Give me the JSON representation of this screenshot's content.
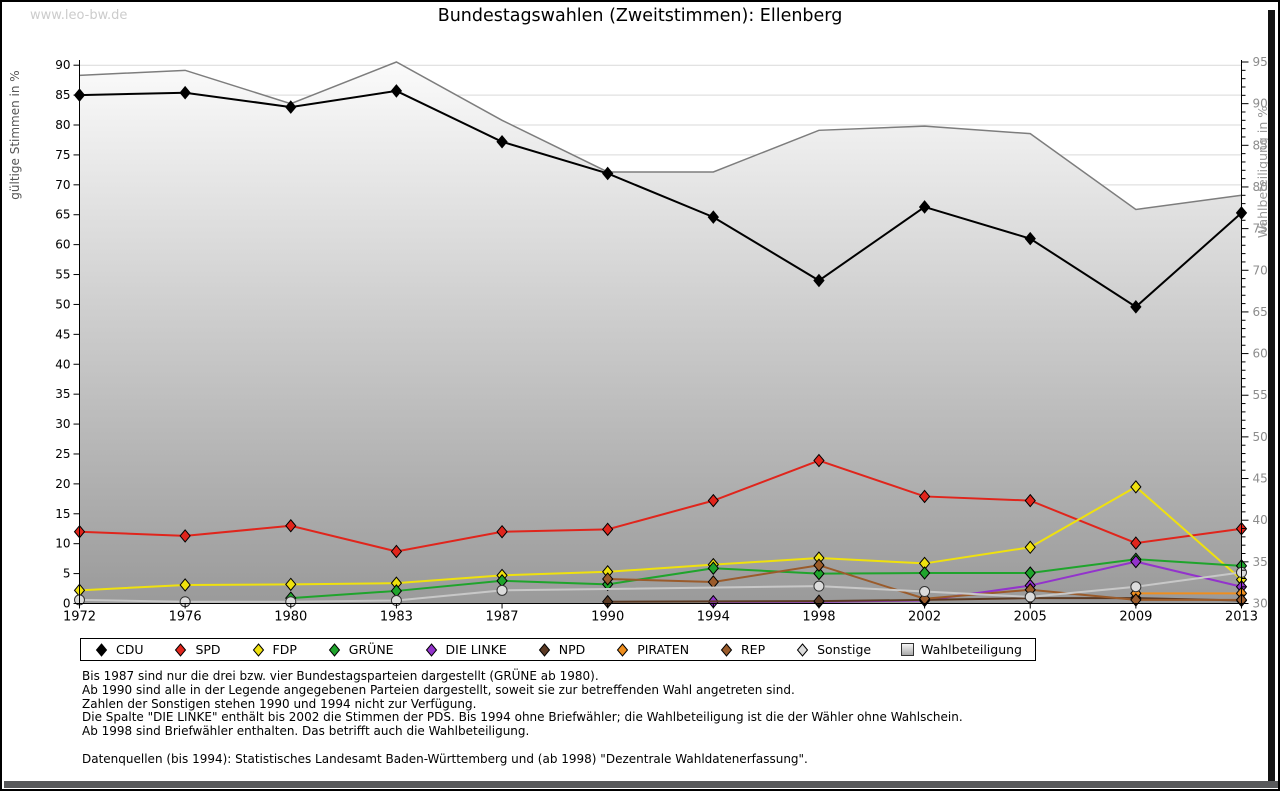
{
  "watermark": "www.leo-bw.de",
  "title": "Bundestagswahlen (Zweitstimmen): Ellenberg",
  "chart_data": {
    "type": "line",
    "categories": [
      1972,
      1976,
      1980,
      1983,
      1987,
      1990,
      1994,
      1998,
      2002,
      2005,
      2009,
      2013
    ],
    "left_axis": {
      "label": "gültige Stimmen in %",
      "min": 0,
      "max": 90,
      "step": 5,
      "ticks": [
        0,
        5,
        10,
        15,
        20,
        25,
        30,
        35,
        40,
        45,
        50,
        55,
        60,
        65,
        70,
        75,
        80,
        85,
        90
      ]
    },
    "right_axis": {
      "label": "Wahlbeteiligung in %",
      "min": 30,
      "max": 95,
      "step": 5,
      "ticks": [
        30,
        35,
        40,
        45,
        50,
        55,
        60,
        65,
        70,
        75,
        80,
        85,
        90,
        95
      ]
    },
    "grid": "horizontal",
    "legend_position": "bottom",
    "series": [
      {
        "name": "CDU",
        "color": "#000000",
        "marker": "diamond",
        "axis": "left",
        "values": [
          85,
          85.4,
          83,
          85.7,
          77.2,
          71.9,
          64.6,
          54,
          66.3,
          61,
          49.6,
          65.3
        ]
      },
      {
        "name": "SPD",
        "color": "#e0251c",
        "marker": "diamond",
        "axis": "left",
        "values": [
          12,
          11.3,
          13,
          8.7,
          12,
          12.4,
          17.2,
          23.9,
          17.9,
          17.2,
          10.1,
          12.5
        ]
      },
      {
        "name": "FDP",
        "color": "#efe10e",
        "marker": "diamond",
        "axis": "left",
        "values": [
          2.2,
          3.1,
          3.2,
          3.4,
          4.7,
          5.3,
          6.5,
          7.6,
          6.7,
          9.4,
          19.5,
          4.0
        ]
      },
      {
        "name": "GRÜNE",
        "color": "#1fa42c",
        "marker": "diamond",
        "axis": "left",
        "values": [
          null,
          null,
          0.9,
          2.1,
          3.8,
          3.2,
          5.9,
          5.0,
          5.1,
          5.1,
          7.4,
          6.3
        ]
      },
      {
        "name": "DIE LINKE",
        "color": "#9333cc",
        "marker": "diamond",
        "axis": "left",
        "values": [
          null,
          null,
          null,
          null,
          null,
          null,
          0.3,
          0.3,
          0.5,
          3.0,
          7.0,
          2.8
        ]
      },
      {
        "name": "NPD",
        "color": "#5b3a24",
        "marker": "diamond",
        "axis": "left",
        "values": [
          null,
          null,
          null,
          null,
          null,
          0.3,
          null,
          0.4,
          0.6,
          0.9,
          0.9,
          0.5
        ]
      },
      {
        "name": "PIRATEN",
        "color": "#ef8e1e",
        "marker": "diamond",
        "axis": "left",
        "values": [
          null,
          null,
          null,
          null,
          null,
          null,
          null,
          null,
          null,
          null,
          1.7,
          1.7
        ]
      },
      {
        "name": "REP",
        "color": "#9a5b2b",
        "marker": "diamond",
        "axis": "left",
        "values": [
          null,
          null,
          null,
          null,
          null,
          4.1,
          3.6,
          6.4,
          0.8,
          2.3,
          0.6,
          0.6
        ]
      },
      {
        "name": "Sonstige",
        "color": "#c8c8c8",
        "marker": "circle",
        "axis": "left",
        "values": [
          0.6,
          0.3,
          0.3,
          0.5,
          2.2,
          null,
          null,
          2.9,
          2.0,
          1.1,
          2.8,
          5.2
        ]
      },
      {
        "name": "Wahlbeteiligung",
        "color": "#7d7d7d",
        "marker": "area",
        "axis": "right",
        "values": [
          93.4,
          94.0,
          90.0,
          95.0,
          88.0,
          81.8,
          81.8,
          86.8,
          87.3,
          86.4,
          77.3,
          79.0
        ]
      }
    ]
  },
  "footnotes": [
    "Bis 1987 sind nur die drei bzw. vier Bundestagsparteien dargestellt (GRÜNE ab 1980).",
    "Ab 1990 sind alle in der Legende angegebenen Parteien dargestellt, soweit sie zur betreffenden Wahl angetreten sind.",
    "Zahlen der Sonstigen stehen 1990 und 1994 nicht zur Verfügung.",
    "Die Spalte \"DIE LINKE\" enthält bis 2002 die Stimmen der PDS. Bis 1994 ohne Briefwähler; die Wahlbeteiligung ist die der Wähler ohne Wahlschein.",
    "Ab 1998 sind Briefwähler enthalten. Das betrifft auch die Wahlbeteiligung.",
    "",
    "Datenquellen (bis 1994): Statistisches Landesamt Baden-Württemberg und (ab 1998) \"Dezentrale Wahldatenerfassung\"."
  ]
}
